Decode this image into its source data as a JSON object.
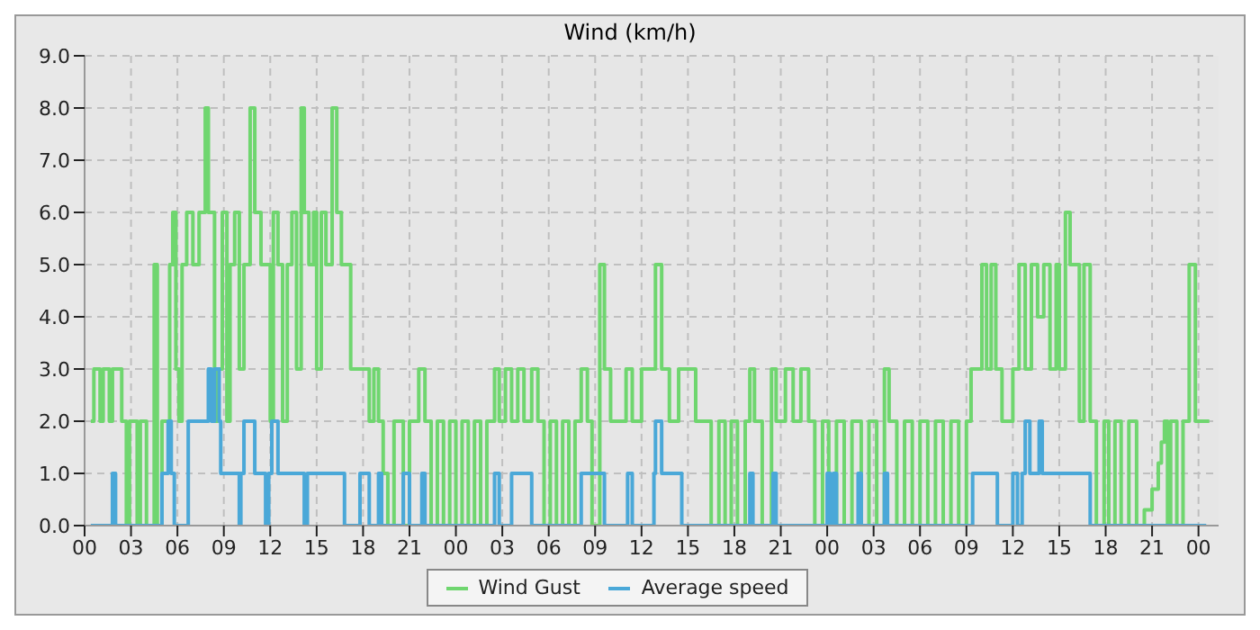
{
  "chart_data": {
    "type": "step",
    "title": "Wind (km/h)",
    "xlim": [
      0,
      73.3
    ],
    "ylim": [
      0,
      9
    ],
    "xticks": [
      {
        "value": 0,
        "label": "00"
      },
      {
        "value": 3,
        "label": "03"
      },
      {
        "value": 6,
        "label": "06"
      },
      {
        "value": 9,
        "label": "09"
      },
      {
        "value": 12,
        "label": "12"
      },
      {
        "value": 15,
        "label": "15"
      },
      {
        "value": 18,
        "label": "18"
      },
      {
        "value": 21,
        "label": "21"
      },
      {
        "value": 24,
        "label": "00"
      },
      {
        "value": 27,
        "label": "03"
      },
      {
        "value": 30,
        "label": "06"
      },
      {
        "value": 33,
        "label": "09"
      },
      {
        "value": 36,
        "label": "12"
      },
      {
        "value": 39,
        "label": "15"
      },
      {
        "value": 42,
        "label": "18"
      },
      {
        "value": 45,
        "label": "21"
      },
      {
        "value": 48,
        "label": "00"
      },
      {
        "value": 51,
        "label": "03"
      },
      {
        "value": 54,
        "label": "06"
      },
      {
        "value": 57,
        "label": "09"
      },
      {
        "value": 60,
        "label": "12"
      },
      {
        "value": 63,
        "label": "15"
      },
      {
        "value": 66,
        "label": "18"
      },
      {
        "value": 69,
        "label": "21"
      },
      {
        "value": 72,
        "label": "00"
      }
    ],
    "yticks": [
      {
        "value": 0,
        "label": "0.0"
      },
      {
        "value": 1,
        "label": "1.0"
      },
      {
        "value": 2,
        "label": "2.0"
      },
      {
        "value": 3,
        "label": "3.0"
      },
      {
        "value": 4,
        "label": "4.0"
      },
      {
        "value": 5,
        "label": "5.0"
      },
      {
        "value": 6,
        "label": "6.0"
      },
      {
        "value": 7,
        "label": "7.0"
      },
      {
        "value": 8,
        "label": "8.0"
      },
      {
        "value": 9,
        "label": "9.0"
      }
    ],
    "grid": true,
    "legend": "bottom",
    "marker": "none",
    "line_style": "solid",
    "series": [
      {
        "name": "Wind Gust",
        "color": "#6fd66f",
        "x": [
          0.4,
          0.6,
          1.0,
          1.2,
          1.6,
          1.8,
          2.4,
          2.7,
          2.9,
          3.4,
          3.6,
          4.0,
          4.5,
          4.7,
          5.0,
          5.5,
          5.7,
          5.9,
          6.1,
          6.3,
          6.6,
          7.0,
          7.4,
          7.8,
          8.0,
          8.4,
          8.6,
          8.9,
          9.2,
          9.4,
          9.7,
          10.0,
          10.3,
          10.7,
          11.0,
          11.4,
          12.0,
          12.2,
          12.5,
          12.8,
          13.1,
          13.4,
          13.7,
          14.0,
          14.2,
          14.5,
          14.8,
          15.0,
          15.3,
          15.6,
          16.0,
          16.3,
          16.6,
          17.2,
          18.4,
          18.7,
          19.0,
          19.3,
          19.6,
          20.0,
          20.6,
          21.0,
          21.6,
          22.0,
          22.4,
          22.8,
          23.2,
          23.6,
          24.0,
          24.4,
          24.8,
          25.2,
          25.6,
          26.0,
          26.5,
          26.8,
          27.2,
          27.6,
          28.0,
          28.4,
          28.9,
          29.3,
          29.7,
          30.1,
          30.5,
          30.9,
          31.3,
          31.7,
          32.1,
          32.5,
          32.8,
          33.3,
          33.6,
          34.0,
          34.5,
          35.0,
          35.4,
          36.0,
          36.9,
          37.3,
          37.8,
          38.4,
          38.8,
          39.5,
          40.0,
          40.5,
          41.0,
          41.4,
          41.8,
          42.2,
          42.7,
          43.0,
          43.3,
          43.8,
          44.4,
          44.7,
          45.3,
          45.8,
          46.3,
          46.8,
          47.2,
          47.7,
          48.1,
          48.6,
          49.1,
          49.6,
          50.2,
          50.7,
          51.2,
          51.7,
          52.0,
          52.5,
          53.0,
          53.5,
          54.0,
          54.5,
          55.0,
          55.5,
          56.0,
          56.5,
          57.0,
          57.3,
          58.0,
          58.3,
          58.6,
          58.9,
          59.3,
          60.0,
          60.4,
          60.8,
          61.2,
          61.6,
          62.0,
          62.4,
          62.8,
          63.0,
          63.4,
          63.7,
          64.3,
          64.6,
          65.0,
          65.4,
          65.9,
          66.2,
          66.6,
          67.0,
          67.5,
          68.0,
          68.5,
          69.0,
          69.4,
          69.6,
          69.8,
          70.0,
          70.2,
          70.6,
          71.0,
          71.4,
          71.8,
          72.1,
          72.4,
          72.7
        ],
        "values": [
          2,
          3,
          2,
          3,
          2,
          3,
          2,
          0,
          2,
          0,
          2,
          0,
          5,
          0,
          2,
          5,
          6,
          3,
          2,
          5,
          6,
          5,
          6,
          8,
          6,
          2,
          3,
          6,
          2,
          5,
          6,
          3,
          5,
          8,
          6,
          5,
          2,
          6,
          5,
          2,
          5,
          6,
          3,
          8,
          6,
          5,
          6,
          3,
          6,
          5,
          8,
          6,
          5,
          3,
          2,
          3,
          2,
          1,
          0,
          2,
          0,
          2,
          3,
          2,
          0,
          2,
          0,
          2,
          0,
          2,
          0,
          2,
          0,
          2,
          3,
          2,
          3,
          2,
          3,
          2,
          3,
          2,
          0,
          2,
          0,
          2,
          0,
          2,
          3,
          2,
          0,
          5,
          3,
          2,
          2,
          3,
          2,
          3,
          5,
          3,
          2,
          3,
          3,
          2,
          2,
          0,
          2,
          0,
          2,
          0,
          2,
          3,
          2,
          0,
          3,
          2,
          3,
          2,
          3,
          2,
          0,
          2,
          0,
          2,
          0,
          2,
          0,
          2,
          0,
          3,
          2,
          0,
          2,
          0,
          2,
          0,
          2,
          0,
          2,
          0,
          2,
          3,
          5,
          3,
          5,
          3,
          2,
          3,
          5,
          3,
          5,
          4,
          5,
          3,
          5,
          3,
          6,
          5,
          2,
          5,
          2,
          0,
          2,
          0,
          2,
          0,
          2,
          0,
          0.3,
          0.7,
          1.2,
          1.6,
          2,
          0,
          2,
          0,
          2,
          5,
          2,
          2,
          2,
          2
        ]
      },
      {
        "name": "Average speed",
        "color": "#4aa8d8",
        "x": [
          0.4,
          1.8,
          2.0,
          5.0,
          5.4,
          5.6,
          5.8,
          6.7,
          8.0,
          8.2,
          8.4,
          8.7,
          8.8,
          10.0,
          10.1,
          10.3,
          11.0,
          11.7,
          11.9,
          12.1,
          12.5,
          14.2,
          14.4,
          16.8,
          17.8,
          18.4,
          19.0,
          19.2,
          20.6,
          21.0,
          21.8,
          22.0,
          26.5,
          26.8,
          27.6,
          28.9,
          32.1,
          33.6,
          35.1,
          35.4,
          36.8,
          36.9,
          37.3,
          38.6,
          43.0,
          43.2,
          44.5,
          44.7,
          48.0,
          48.2,
          48.4,
          48.6,
          50.0,
          50.2,
          51.7,
          51.9,
          57.4,
          59.0,
          60.0,
          60.3,
          60.6,
          60.8,
          61.1,
          61.7,
          61.9,
          62.3,
          65.0,
          72.5
        ],
        "values": [
          0,
          1,
          0,
          1,
          2,
          1,
          0,
          2,
          3,
          2,
          3,
          2,
          1,
          0,
          1,
          2,
          1,
          0,
          1,
          2,
          1,
          0,
          1,
          0,
          1,
          0,
          1,
          0,
          1,
          0,
          1,
          0,
          1,
          0,
          1,
          0,
          1,
          0,
          1,
          0,
          1,
          2,
          1,
          0,
          1,
          0,
          1,
          0,
          1,
          0,
          1,
          0,
          1,
          0,
          1,
          0,
          1,
          0,
          1,
          0,
          1,
          2,
          1,
          2,
          1,
          1,
          0,
          0
        ]
      }
    ]
  }
}
